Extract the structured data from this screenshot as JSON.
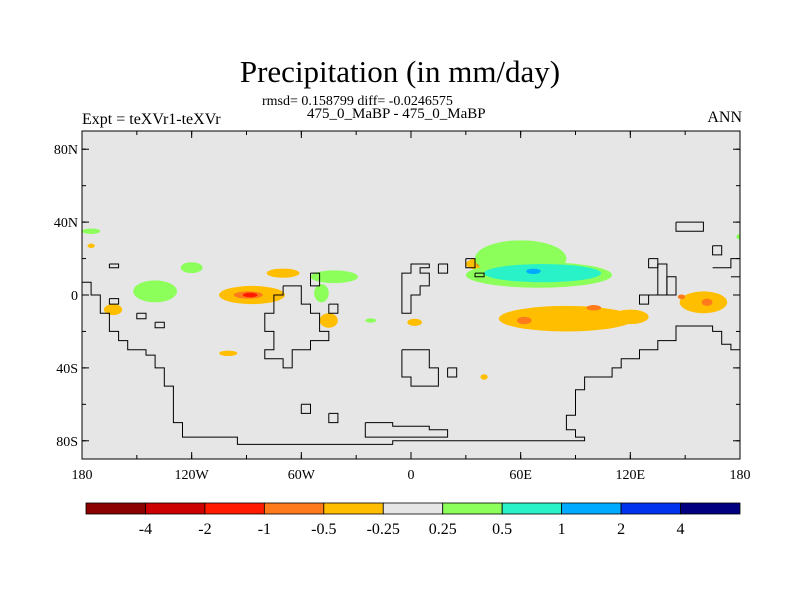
{
  "chart_data": {
    "type": "heatmap",
    "title": "Precipitation (in mm/day)",
    "stats": "rmsd= 0.158799 diff= -0.0246575",
    "subtitle": "475_0_MaBP - 475_0_MaBP",
    "left_label": "Expt = teXVr1-teXVr",
    "right_label": "ANN",
    "x_axis": {
      "range": [
        -180,
        180
      ],
      "ticks": [
        -180,
        -120,
        -60,
        0,
        60,
        120,
        180
      ],
      "tick_labels": [
        "180",
        "120W",
        "60W",
        "0",
        "60E",
        "120E",
        "180"
      ]
    },
    "y_axis": {
      "range": [
        -90,
        90
      ],
      "ticks": [
        80,
        40,
        0,
        -40,
        -80
      ],
      "tick_labels": [
        "80N",
        "40N",
        "0",
        "40S",
        "80S"
      ]
    },
    "colorbar": {
      "labels": [
        "-4",
        "-2",
        "-1",
        "-0.5",
        "-0.25",
        "0.25",
        "0.5",
        "1",
        "2",
        "4"
      ],
      "colors": [
        "#8b0000",
        "#cc0000",
        "#ff1a00",
        "#ff7a1a",
        "#ffbf00",
        "#e6e6e6",
        "#8cff5a",
        "#2af2c8",
        "#00aaff",
        "#0033ee",
        "#000080"
      ]
    },
    "background_color": "#e6e6e6",
    "anomaly_regions": [
      {
        "lon": -175,
        "lat": 35,
        "rx": 5,
        "ry": 1.5,
        "color": "#8cff5a"
      },
      {
        "lon": -175,
        "lat": 27,
        "rx": 2,
        "ry": 1.2,
        "color": "#ffbf00"
      },
      {
        "lon": -163,
        "lat": -8,
        "rx": 5,
        "ry": 3,
        "color": "#ffbf00"
      },
      {
        "lon": -140,
        "lat": 2,
        "rx": 12,
        "ry": 6,
        "color": "#8cff5a"
      },
      {
        "lon": -120,
        "lat": 15,
        "rx": 6,
        "ry": 3,
        "color": "#8cff5a"
      },
      {
        "lon": -87,
        "lat": 0,
        "rx": 18,
        "ry": 5,
        "color": "#ffbf00"
      },
      {
        "lon": -89,
        "lat": 0,
        "rx": 8,
        "ry": 2,
        "color": "#ff7a1a"
      },
      {
        "lon": -88,
        "lat": 0,
        "rx": 4,
        "ry": 1.3,
        "color": "#ff1a00"
      },
      {
        "lon": -70,
        "lat": 12,
        "rx": 9,
        "ry": 2.5,
        "color": "#ffbf00"
      },
      {
        "lon": -42,
        "lat": 10,
        "rx": 13,
        "ry": 3.5,
        "color": "#8cff5a"
      },
      {
        "lon": -49,
        "lat": 1,
        "rx": 4,
        "ry": 5,
        "color": "#8cff5a"
      },
      {
        "lon": -45,
        "lat": -14,
        "rx": 5,
        "ry": 4,
        "color": "#ffbf00"
      },
      {
        "lon": -22,
        "lat": -14,
        "rx": 3,
        "ry": 1.2,
        "color": "#8cff5a"
      },
      {
        "lon": -100,
        "lat": -32,
        "rx": 5,
        "ry": 1.5,
        "color": "#ffbf00"
      },
      {
        "lon": 2,
        "lat": -15,
        "rx": 4,
        "ry": 2,
        "color": "#ffbf00"
      },
      {
        "lon": 40,
        "lat": 17,
        "rx": 10,
        "ry": 3.5,
        "color": "#ffbf00"
      },
      {
        "lon": 38,
        "lat": 17,
        "rx": 2,
        "ry": 1.3,
        "color": "#ff1a00"
      },
      {
        "lon": 60,
        "lat": 20,
        "rx": 25,
        "ry": 10,
        "color": "#8cff5a"
      },
      {
        "lon": 70,
        "lat": 11,
        "rx": 40,
        "ry": 7,
        "color": "#8cff5a"
      },
      {
        "lon": 72,
        "lat": 12,
        "rx": 32,
        "ry": 5,
        "color": "#2af2c8"
      },
      {
        "lon": 67,
        "lat": 13,
        "rx": 4,
        "ry": 1.5,
        "color": "#00aaff"
      },
      {
        "lon": 85,
        "lat": -13,
        "rx": 37,
        "ry": 7,
        "color": "#ffbf00"
      },
      {
        "lon": 120,
        "lat": -12,
        "rx": 10,
        "ry": 4,
        "color": "#ffbf00"
      },
      {
        "lon": 62,
        "lat": -14,
        "rx": 4,
        "ry": 2,
        "color": "#ff7a1a"
      },
      {
        "lon": 100,
        "lat": -7,
        "rx": 4,
        "ry": 1.5,
        "color": "#ff7a1a"
      },
      {
        "lon": 40,
        "lat": -45,
        "rx": 2,
        "ry": 1.5,
        "color": "#ffbf00"
      },
      {
        "lon": 160,
        "lat": -4,
        "rx": 13,
        "ry": 6,
        "color": "#ffbf00"
      },
      {
        "lon": 162,
        "lat": -4,
        "rx": 3,
        "ry": 2,
        "color": "#ff7a1a"
      },
      {
        "lon": 148,
        "lat": -1,
        "rx": 2,
        "ry": 1.3,
        "color": "#ff7a1a"
      },
      {
        "lon": 180,
        "lat": 32,
        "rx": 2,
        "ry": 1.5,
        "color": "#8cff5a"
      }
    ],
    "coastlines": [
      [
        [
          -180,
          7
        ],
        [
          -175,
          7
        ],
        [
          -175,
          0
        ],
        [
          -170,
          0
        ],
        [
          -170,
          -10
        ],
        [
          -165,
          -10
        ],
        [
          -165,
          -20
        ],
        [
          -160,
          -20
        ],
        [
          -160,
          -25
        ],
        [
          -155,
          -25
        ],
        [
          -155,
          -30
        ],
        [
          -145,
          -30
        ],
        [
          -145,
          -33
        ],
        [
          -140,
          -33
        ],
        [
          -140,
          -40
        ],
        [
          -135,
          -40
        ],
        [
          -135,
          -50
        ],
        [
          -130,
          -50
        ],
        [
          -130,
          -70
        ],
        [
          -125,
          -70
        ],
        [
          -125,
          -78
        ],
        [
          -95,
          -78
        ],
        [
          -95,
          -82
        ],
        [
          -10,
          -82
        ],
        [
          -10,
          -80
        ],
        [
          95,
          -80
        ],
        [
          95,
          -78
        ],
        [
          90,
          -78
        ],
        [
          90,
          -74
        ],
        [
          85,
          -74
        ],
        [
          85,
          -66
        ],
        [
          90,
          -66
        ],
        [
          90,
          -52
        ],
        [
          95,
          -52
        ],
        [
          95,
          -45
        ],
        [
          110,
          -45
        ],
        [
          110,
          -40
        ],
        [
          115,
          -40
        ],
        [
          115,
          -35
        ],
        [
          125,
          -35
        ],
        [
          125,
          -30
        ],
        [
          135,
          -30
        ],
        [
          135,
          -25
        ],
        [
          145,
          -25
        ],
        [
          145,
          -17
        ],
        [
          165,
          -17
        ],
        [
          165,
          -20
        ],
        [
          170,
          -20
        ],
        [
          170,
          -27
        ],
        [
          175,
          -27
        ],
        [
          175,
          -30
        ],
        [
          180,
          -30
        ]
      ],
      [
        [
          -165,
          17
        ],
        [
          -160,
          17
        ],
        [
          -160,
          15
        ],
        [
          -165,
          15
        ],
        [
          -165,
          17
        ]
      ],
      [
        [
          -165,
          -2
        ],
        [
          -160,
          -2
        ],
        [
          -160,
          -5
        ],
        [
          -165,
          -5
        ],
        [
          -165,
          -2
        ]
      ],
      [
        [
          -150,
          -10
        ],
        [
          -145,
          -10
        ],
        [
          -145,
          -13
        ],
        [
          -150,
          -13
        ],
        [
          -150,
          -10
        ]
      ],
      [
        [
          -140,
          -15
        ],
        [
          -135,
          -15
        ],
        [
          -135,
          -18
        ],
        [
          -140,
          -18
        ],
        [
          -140,
          -15
        ]
      ],
      [
        [
          -70,
          5
        ],
        [
          -70,
          0
        ],
        [
          -75,
          0
        ],
        [
          -75,
          -10
        ],
        [
          -80,
          -10
        ],
        [
          -80,
          -20
        ],
        [
          -75,
          -20
        ],
        [
          -75,
          -30
        ],
        [
          -80,
          -30
        ],
        [
          -80,
          -35
        ],
        [
          -70,
          -35
        ],
        [
          -70,
          -40
        ],
        [
          -65,
          -40
        ],
        [
          -65,
          -30
        ],
        [
          -55,
          -30
        ],
        [
          -55,
          -25
        ],
        [
          -45,
          -25
        ],
        [
          -45,
          -20
        ],
        [
          -50,
          -20
        ],
        [
          -50,
          -10
        ],
        [
          -55,
          -10
        ],
        [
          -55,
          -5
        ],
        [
          -60,
          -5
        ],
        [
          -60,
          5
        ],
        [
          -70,
          5
        ]
      ],
      [
        [
          -55,
          12
        ],
        [
          -50,
          12
        ],
        [
          -50,
          5
        ],
        [
          -55,
          5
        ],
        [
          -55,
          12
        ]
      ],
      [
        [
          -45,
          -5
        ],
        [
          -40,
          -5
        ],
        [
          -40,
          -10
        ],
        [
          -45,
          -10
        ],
        [
          -45,
          -5
        ]
      ],
      [
        [
          5,
          17
        ],
        [
          10,
          17
        ],
        [
          10,
          15
        ],
        [
          5,
          15
        ],
        [
          5,
          12
        ],
        [
          10,
          12
        ],
        [
          10,
          5
        ],
        [
          5,
          5
        ],
        [
          5,
          0
        ],
        [
          0,
          0
        ],
        [
          0,
          -10
        ],
        [
          -5,
          -10
        ],
        [
          -5,
          12
        ],
        [
          0,
          12
        ],
        [
          0,
          17
        ],
        [
          5,
          17
        ]
      ],
      [
        [
          15,
          17
        ],
        [
          20,
          17
        ],
        [
          20,
          12
        ],
        [
          15,
          12
        ],
        [
          15,
          17
        ]
      ],
      [
        [
          30,
          20
        ],
        [
          35,
          20
        ],
        [
          35,
          15
        ],
        [
          30,
          15
        ],
        [
          30,
          20
        ]
      ],
      [
        [
          35,
          12
        ],
        [
          40,
          12
        ],
        [
          40,
          10
        ],
        [
          35,
          10
        ],
        [
          35,
          12
        ]
      ],
      [
        [
          -5,
          -30
        ],
        [
          10,
          -30
        ],
        [
          10,
          -40
        ],
        [
          15,
          -40
        ],
        [
          15,
          -50
        ],
        [
          0,
          -50
        ],
        [
          0,
          -45
        ],
        [
          -5,
          -45
        ],
        [
          -5,
          -30
        ]
      ],
      [
        [
          20,
          -40
        ],
        [
          25,
          -40
        ],
        [
          25,
          -45
        ],
        [
          20,
          -45
        ],
        [
          20,
          -40
        ]
      ],
      [
        [
          145,
          40
        ],
        [
          160,
          40
        ],
        [
          160,
          35
        ],
        [
          145,
          35
        ],
        [
          145,
          40
        ]
      ],
      [
        [
          165,
          27
        ],
        [
          170,
          27
        ],
        [
          170,
          22
        ],
        [
          165,
          22
        ],
        [
          165,
          27
        ]
      ],
      [
        [
          130,
          20
        ],
        [
          135,
          20
        ],
        [
          135,
          15
        ],
        [
          130,
          15
        ],
        [
          130,
          20
        ]
      ],
      [
        [
          135,
          17
        ],
        [
          140,
          17
        ],
        [
          140,
          0
        ],
        [
          130,
          0
        ],
        [
          130,
          -5
        ],
        [
          125,
          -5
        ],
        [
          125,
          0
        ],
        [
          135,
          0
        ],
        [
          135,
          17
        ]
      ],
      [
        [
          140,
          10
        ],
        [
          145,
          10
        ],
        [
          145,
          0
        ],
        [
          140,
          0
        ],
        [
          140,
          10
        ]
      ],
      [
        [
          165,
          15
        ],
        [
          175,
          15
        ],
        [
          175,
          20
        ],
        [
          180,
          20
        ]
      ],
      [
        [
          175,
          10
        ],
        [
          180,
          10
        ]
      ],
      [
        [
          -60,
          -60
        ],
        [
          -55,
          -60
        ],
        [
          -55,
          -65
        ],
        [
          -60,
          -65
        ],
        [
          -60,
          -60
        ]
      ],
      [
        [
          -45,
          -65
        ],
        [
          -40,
          -65
        ],
        [
          -40,
          -70
        ],
        [
          -45,
          -70
        ],
        [
          -45,
          -65
        ]
      ],
      [
        [
          -25,
          -70
        ],
        [
          -10,
          -70
        ],
        [
          -10,
          -72
        ],
        [
          10,
          -72
        ],
        [
          10,
          -74
        ],
        [
          20,
          -74
        ],
        [
          20,
          -78
        ],
        [
          -25,
          -78
        ],
        [
          -25,
          -70
        ]
      ]
    ]
  }
}
